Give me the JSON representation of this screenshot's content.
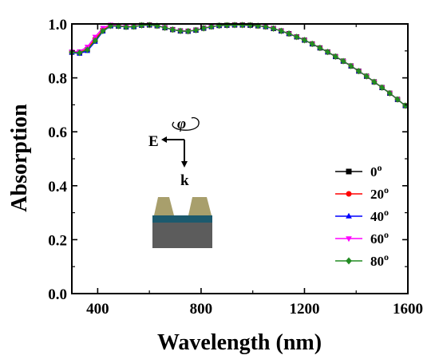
{
  "chart_data": {
    "type": "line",
    "title": "",
    "xlabel": "Wavelength (nm)",
    "ylabel": "Absorption",
    "xlim": [
      300,
      1600
    ],
    "ylim": [
      0.0,
      1.0
    ],
    "xticks": [
      400,
      800,
      1200,
      1600
    ],
    "xtick_labels": [
      "400",
      "800",
      "1200",
      "1600"
    ],
    "yticks": [
      0.0,
      0.2,
      0.4,
      0.6,
      0.8,
      1.0
    ],
    "ytick_labels": [
      "0.0",
      "0.2",
      "0.4",
      "0.6",
      "0.8",
      "1.0"
    ],
    "grid": false,
    "legend_position": "lower-right",
    "x": [
      300,
      330,
      360,
      390,
      420,
      450,
      480,
      510,
      540,
      570,
      600,
      630,
      660,
      690,
      720,
      750,
      780,
      810,
      840,
      870,
      900,
      930,
      960,
      990,
      1020,
      1050,
      1080,
      1110,
      1140,
      1170,
      1200,
      1230,
      1260,
      1290,
      1320,
      1350,
      1380,
      1410,
      1440,
      1470,
      1500,
      1530,
      1560,
      1590
    ],
    "series": [
      {
        "name": "0",
        "unit_sup": "o",
        "color": "#000000",
        "marker": "square",
        "values": [
          0.895,
          0.892,
          0.905,
          0.94,
          0.975,
          0.993,
          0.992,
          0.989,
          0.99,
          0.995,
          0.996,
          0.993,
          0.986,
          0.979,
          0.974,
          0.973,
          0.977,
          0.984,
          0.99,
          0.994,
          0.995,
          0.996,
          0.996,
          0.995,
          0.993,
          0.99,
          0.983,
          0.974,
          0.964,
          0.952,
          0.94,
          0.926,
          0.911,
          0.896,
          0.879,
          0.862,
          0.844,
          0.825,
          0.806,
          0.785,
          0.764,
          0.743,
          0.72,
          0.697
        ]
      },
      {
        "name": "20",
        "unit_sup": "o",
        "color": "#ff0000",
        "marker": "circle",
        "values": [
          0.896,
          0.894,
          0.908,
          0.944,
          0.978,
          0.994,
          0.993,
          0.99,
          0.991,
          0.995,
          0.996,
          0.993,
          0.986,
          0.979,
          0.974,
          0.973,
          0.977,
          0.984,
          0.99,
          0.994,
          0.995,
          0.996,
          0.996,
          0.995,
          0.993,
          0.99,
          0.983,
          0.974,
          0.964,
          0.952,
          0.94,
          0.926,
          0.911,
          0.896,
          0.879,
          0.862,
          0.844,
          0.825,
          0.806,
          0.785,
          0.764,
          0.743,
          0.72,
          0.697
        ]
      },
      {
        "name": "40",
        "unit_sup": "o",
        "color": "#0000ff",
        "marker": "triangle-up",
        "values": [
          0.894,
          0.89,
          0.9,
          0.934,
          0.972,
          0.992,
          0.992,
          0.989,
          0.99,
          0.995,
          0.996,
          0.993,
          0.986,
          0.979,
          0.974,
          0.973,
          0.977,
          0.984,
          0.99,
          0.994,
          0.995,
          0.996,
          0.996,
          0.995,
          0.993,
          0.99,
          0.983,
          0.974,
          0.964,
          0.952,
          0.94,
          0.926,
          0.911,
          0.896,
          0.879,
          0.862,
          0.844,
          0.825,
          0.806,
          0.785,
          0.764,
          0.743,
          0.72,
          0.697
        ]
      },
      {
        "name": "60",
        "unit_sup": "o",
        "color": "#ff00ff",
        "marker": "triangle-down",
        "values": [
          0.897,
          0.898,
          0.915,
          0.952,
          0.985,
          0.997,
          0.994,
          0.99,
          0.991,
          0.995,
          0.996,
          0.993,
          0.986,
          0.979,
          0.974,
          0.973,
          0.977,
          0.984,
          0.99,
          0.994,
          0.995,
          0.996,
          0.996,
          0.995,
          0.993,
          0.99,
          0.983,
          0.974,
          0.964,
          0.952,
          0.94,
          0.926,
          0.911,
          0.896,
          0.879,
          0.862,
          0.844,
          0.825,
          0.806,
          0.785,
          0.764,
          0.743,
          0.72,
          0.697
        ]
      },
      {
        "name": "80",
        "unit_sup": "o",
        "color": "#228b22",
        "marker": "diamond",
        "values": [
          0.895,
          0.893,
          0.904,
          0.938,
          0.974,
          0.993,
          0.992,
          0.989,
          0.99,
          0.995,
          0.996,
          0.993,
          0.986,
          0.979,
          0.974,
          0.973,
          0.977,
          0.984,
          0.99,
          0.994,
          0.995,
          0.996,
          0.996,
          0.995,
          0.993,
          0.99,
          0.983,
          0.974,
          0.964,
          0.952,
          0.94,
          0.926,
          0.911,
          0.896,
          0.879,
          0.862,
          0.844,
          0.825,
          0.806,
          0.785,
          0.764,
          0.743,
          0.72,
          0.697
        ]
      }
    ],
    "inset": {
      "field_label": "E",
      "wavevector_label": "k",
      "rotation_label": "φ",
      "colors": {
        "ridge": "#a89f6c",
        "spacer": "#1c5a6e",
        "substrate": "#5c5c5c"
      }
    }
  }
}
